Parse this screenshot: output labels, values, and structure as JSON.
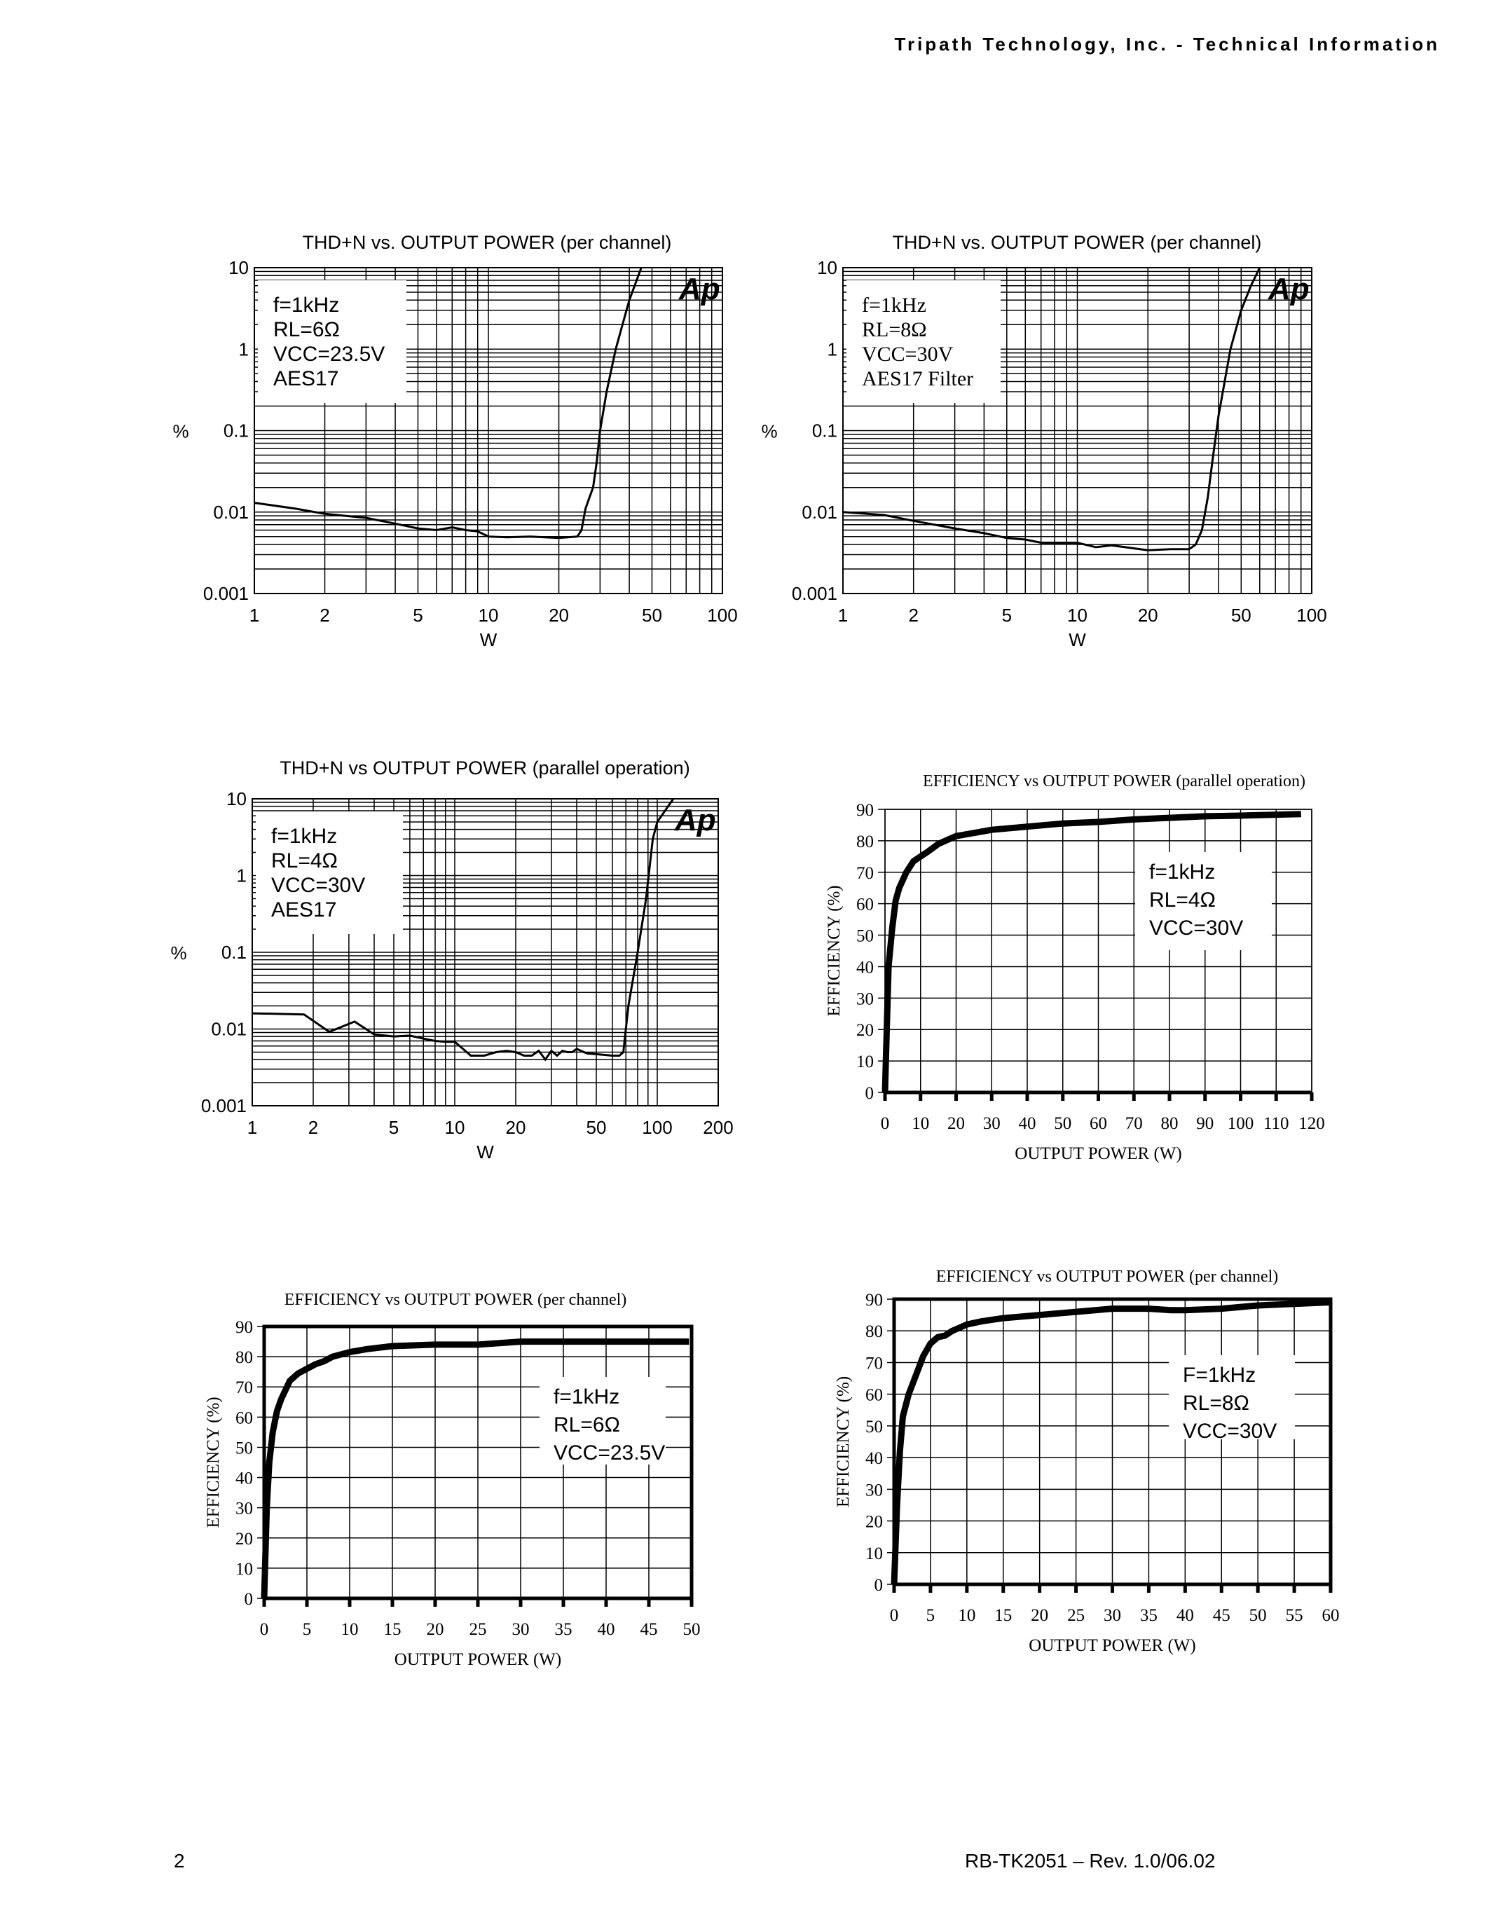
{
  "header": {
    "title": "Tripath Technology, Inc. -  Technical Information"
  },
  "footer": {
    "page_number": "2",
    "doc_id": "RB-TK2051 – Rev. 1.0/06.02"
  },
  "chart_data": [
    {
      "id": "thd_6ohm",
      "type": "line",
      "title": "THD+N vs. OUTPUT POWER (per channel)",
      "xlabel": "W",
      "ylabel": "%",
      "xscale": "log",
      "yscale": "log",
      "xlim": [
        1,
        100
      ],
      "ylim": [
        0.001,
        10
      ],
      "xticks": [
        "1",
        "2",
        "5",
        "10",
        "20",
        "50",
        "100"
      ],
      "yticks": [
        "0.001",
        "0.01",
        "0.1",
        "1",
        "10"
      ],
      "legend": [
        "f=1kHz",
        "RL=6Ω",
        "VCC=23.5V",
        "AES17"
      ],
      "logo": "Ap",
      "x": [
        1,
        1.5,
        2,
        3,
        4,
        5,
        6,
        7,
        8,
        9,
        10,
        12,
        15,
        20,
        24,
        25,
        26,
        27,
        28,
        29,
        30,
        32,
        35,
        40,
        45
      ],
      "values": [
        0.013,
        0.011,
        0.0095,
        0.0085,
        0.0072,
        0.0063,
        0.006,
        0.0065,
        0.006,
        0.0058,
        0.005,
        0.0049,
        0.005,
        0.0048,
        0.005,
        0.006,
        0.011,
        0.015,
        0.02,
        0.04,
        0.1,
        0.3,
        1.0,
        4.0,
        10.0
      ]
    },
    {
      "id": "thd_8ohm",
      "type": "line",
      "title": "THD+N vs. OUTPUT POWER (per channel)",
      "xlabel": "W",
      "ylabel": "%",
      "xscale": "log",
      "yscale": "log",
      "xlim": [
        1,
        100
      ],
      "ylim": [
        0.001,
        10
      ],
      "xticks": [
        "1",
        "2",
        "5",
        "10",
        "20",
        "50",
        "100"
      ],
      "yticks": [
        "0.001",
        "0.01",
        "0.1",
        "1",
        "10"
      ],
      "legend": [
        "f=1kHz",
        "RL=8Ω",
        "VCC=30V",
        "AES17 Filter"
      ],
      "logo": "Ap",
      "x": [
        1,
        1.5,
        2,
        3,
        4,
        5,
        6,
        7,
        8,
        10,
        12,
        14,
        16,
        20,
        25,
        30,
        32,
        34,
        36,
        38,
        40,
        45,
        50,
        55,
        60
      ],
      "values": [
        0.01,
        0.0092,
        0.0078,
        0.0063,
        0.0055,
        0.0048,
        0.0046,
        0.0042,
        0.0042,
        0.0042,
        0.0037,
        0.0039,
        0.0037,
        0.0034,
        0.0035,
        0.0035,
        0.004,
        0.006,
        0.015,
        0.05,
        0.15,
        1.0,
        3.0,
        6.0,
        10.0
      ]
    },
    {
      "id": "thd_parallel",
      "type": "line",
      "title": "THD+N vs OUTPUT POWER (parallel operation)",
      "xlabel": "W",
      "ylabel": "%",
      "xscale": "log",
      "yscale": "log",
      "xlim": [
        1,
        200
      ],
      "ylim": [
        0.001,
        10
      ],
      "xticks": [
        "1",
        "2",
        "5",
        "10",
        "20",
        "50",
        "100",
        "200"
      ],
      "yticks": [
        "0.001",
        "0.01",
        "0.1",
        "1",
        "10"
      ],
      "legend": [
        "f=1kHz",
        "RL=4Ω",
        "VCC=30V",
        "AES17"
      ],
      "logo": "Ap",
      "x": [
        1,
        1.8,
        2.4,
        3.2,
        4,
        5,
        6,
        7,
        8,
        9,
        10,
        12,
        14,
        16,
        18,
        20,
        22,
        24,
        26,
        28,
        30,
        32,
        34,
        36,
        38,
        40,
        45,
        50,
        60,
        65,
        68,
        72,
        80,
        88,
        95,
        100,
        120
      ],
      "values": [
        0.016,
        0.0155,
        0.0092,
        0.0125,
        0.0085,
        0.008,
        0.0082,
        0.0075,
        0.007,
        0.0068,
        0.0068,
        0.0045,
        0.0045,
        0.005,
        0.0052,
        0.005,
        0.0045,
        0.0045,
        0.0052,
        0.004,
        0.0052,
        0.0045,
        0.0052,
        0.005,
        0.005,
        0.0055,
        0.0048,
        0.0047,
        0.0045,
        0.0045,
        0.005,
        0.02,
        0.1,
        0.5,
        3.0,
        5.0,
        10.0
      ]
    },
    {
      "id": "eff_parallel",
      "type": "line",
      "title": "EFFICIENCY vs OUTPUT POWER (parallel operation)",
      "xlabel": "OUTPUT POWER (W)",
      "ylabel": "EFFICIENCY (%)",
      "xlim": [
        0,
        120
      ],
      "ylim": [
        0,
        90
      ],
      "xticks": [
        "0",
        "10",
        "20",
        "30",
        "40",
        "50",
        "60",
        "70",
        "80",
        "90",
        "100",
        "110",
        "120"
      ],
      "yticks": [
        "0",
        "10",
        "20",
        "30",
        "40",
        "50",
        "60",
        "70",
        "80",
        "90"
      ],
      "legend": [
        "f=1kHz",
        "RL=4Ω",
        "VCC=30V"
      ],
      "x": [
        0,
        0.5,
        1,
        2,
        3,
        4,
        6,
        8,
        10,
        12,
        15,
        18,
        20,
        25,
        30,
        40,
        50,
        60,
        70,
        80,
        90,
        100,
        110,
        117
      ],
      "values": [
        0,
        20,
        40,
        52,
        61,
        65,
        70,
        73.5,
        75,
        76.5,
        79,
        80.5,
        81.5,
        82.5,
        83.5,
        84.5,
        85.5,
        86,
        86.8,
        87.3,
        87.8,
        88,
        88.3,
        88.5
      ]
    },
    {
      "id": "eff_6ohm",
      "type": "line",
      "title": "EFFICIENCY vs OUTPUT POWER (per channel)",
      "xlabel": "OUTPUT POWER (W)",
      "ylabel": "EFFICIENCY (%)",
      "xlim": [
        0,
        50
      ],
      "ylim": [
        0,
        90
      ],
      "xticks": [
        "0",
        "5",
        "10",
        "15",
        "20",
        "25",
        "30",
        "35",
        "40",
        "45",
        "50"
      ],
      "yticks": [
        "0",
        "10",
        "20",
        "30",
        "40",
        "50",
        "60",
        "70",
        "80",
        "90"
      ],
      "legend": [
        "f=1kHz",
        "RL=6Ω",
        "VCC=23.5V"
      ],
      "x": [
        0,
        0.3,
        0.6,
        1,
        1.5,
        2,
        3,
        4,
        5,
        6,
        7,
        8,
        10,
        12,
        15,
        20,
        25,
        30,
        35,
        40,
        45,
        49.7
      ],
      "values": [
        0,
        30,
        45,
        55,
        62,
        66,
        72,
        74.5,
        76,
        77.5,
        78.5,
        80,
        81.5,
        82.5,
        83.5,
        84,
        84,
        85,
        85,
        85,
        85,
        85
      ]
    },
    {
      "id": "eff_8ohm",
      "type": "line",
      "title": "EFFICIENCY vs OUTPUT POWER (per channel)",
      "xlabel": "OUTPUT POWER (W)",
      "ylabel": "EFFICIENCY (%)",
      "xlim": [
        0,
        60
      ],
      "ylim": [
        0,
        90
      ],
      "xticks": [
        "0",
        "5",
        "10",
        "15",
        "20",
        "25",
        "30",
        "35",
        "40",
        "45",
        "50",
        "55",
        "60"
      ],
      "yticks": [
        "0",
        "10",
        "20",
        "30",
        "40",
        "50",
        "60",
        "70",
        "80",
        "90"
      ],
      "legend": [
        "F=1kHz",
        "RL=8Ω",
        "VCC=30V"
      ],
      "x": [
        0,
        0.4,
        0.8,
        1.2,
        2,
        3,
        4,
        5,
        6,
        7,
        8,
        10,
        12,
        15,
        20,
        25,
        30,
        35,
        38,
        40,
        45,
        50,
        55,
        60
      ],
      "values": [
        0,
        25,
        42,
        53,
        60,
        66,
        72,
        76,
        78,
        78.5,
        80,
        82,
        83,
        84,
        85,
        86,
        87,
        87,
        86.5,
        86.5,
        87,
        88,
        88.5,
        89
      ]
    }
  ]
}
